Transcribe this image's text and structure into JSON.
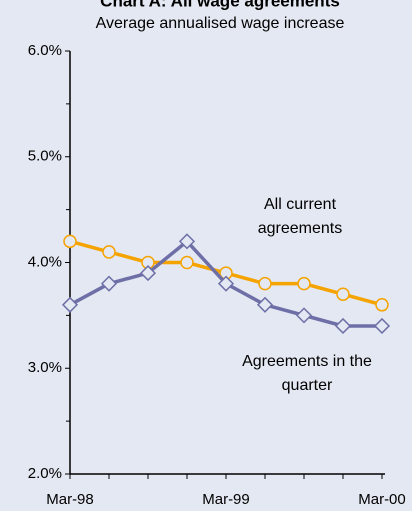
{
  "chart_data": {
    "type": "line",
    "title": "Chart A: All wage agreements",
    "subtitle": "Average annualised wage increase",
    "categories": [
      "Mar-98",
      null,
      null,
      null,
      "Mar-99",
      null,
      null,
      null,
      "Mar-00"
    ],
    "series": [
      {
        "name": "All current agreements",
        "color": "#f5a300",
        "marker": "circle",
        "values": [
          4.2,
          4.1,
          4.0,
          4.0,
          3.9,
          3.8,
          3.8,
          3.7,
          3.6
        ]
      },
      {
        "name": "Agreements in the quarter",
        "color": "#6e6fa6",
        "marker": "diamond",
        "values": [
          3.6,
          3.8,
          3.9,
          4.2,
          3.8,
          3.6,
          3.5,
          3.4,
          3.4
        ]
      }
    ],
    "ylim": [
      2,
      6
    ],
    "yticks": [
      {
        "value": 2,
        "label": "2.0%"
      },
      {
        "value": 3,
        "label": "3.0%"
      },
      {
        "value": 4,
        "label": "4.0%"
      },
      {
        "value": 5,
        "label": "5.0%"
      },
      {
        "value": 6,
        "label": "6.0%"
      }
    ],
    "yminorticks": [
      2.5,
      3.5,
      4.5,
      5.5
    ]
  }
}
